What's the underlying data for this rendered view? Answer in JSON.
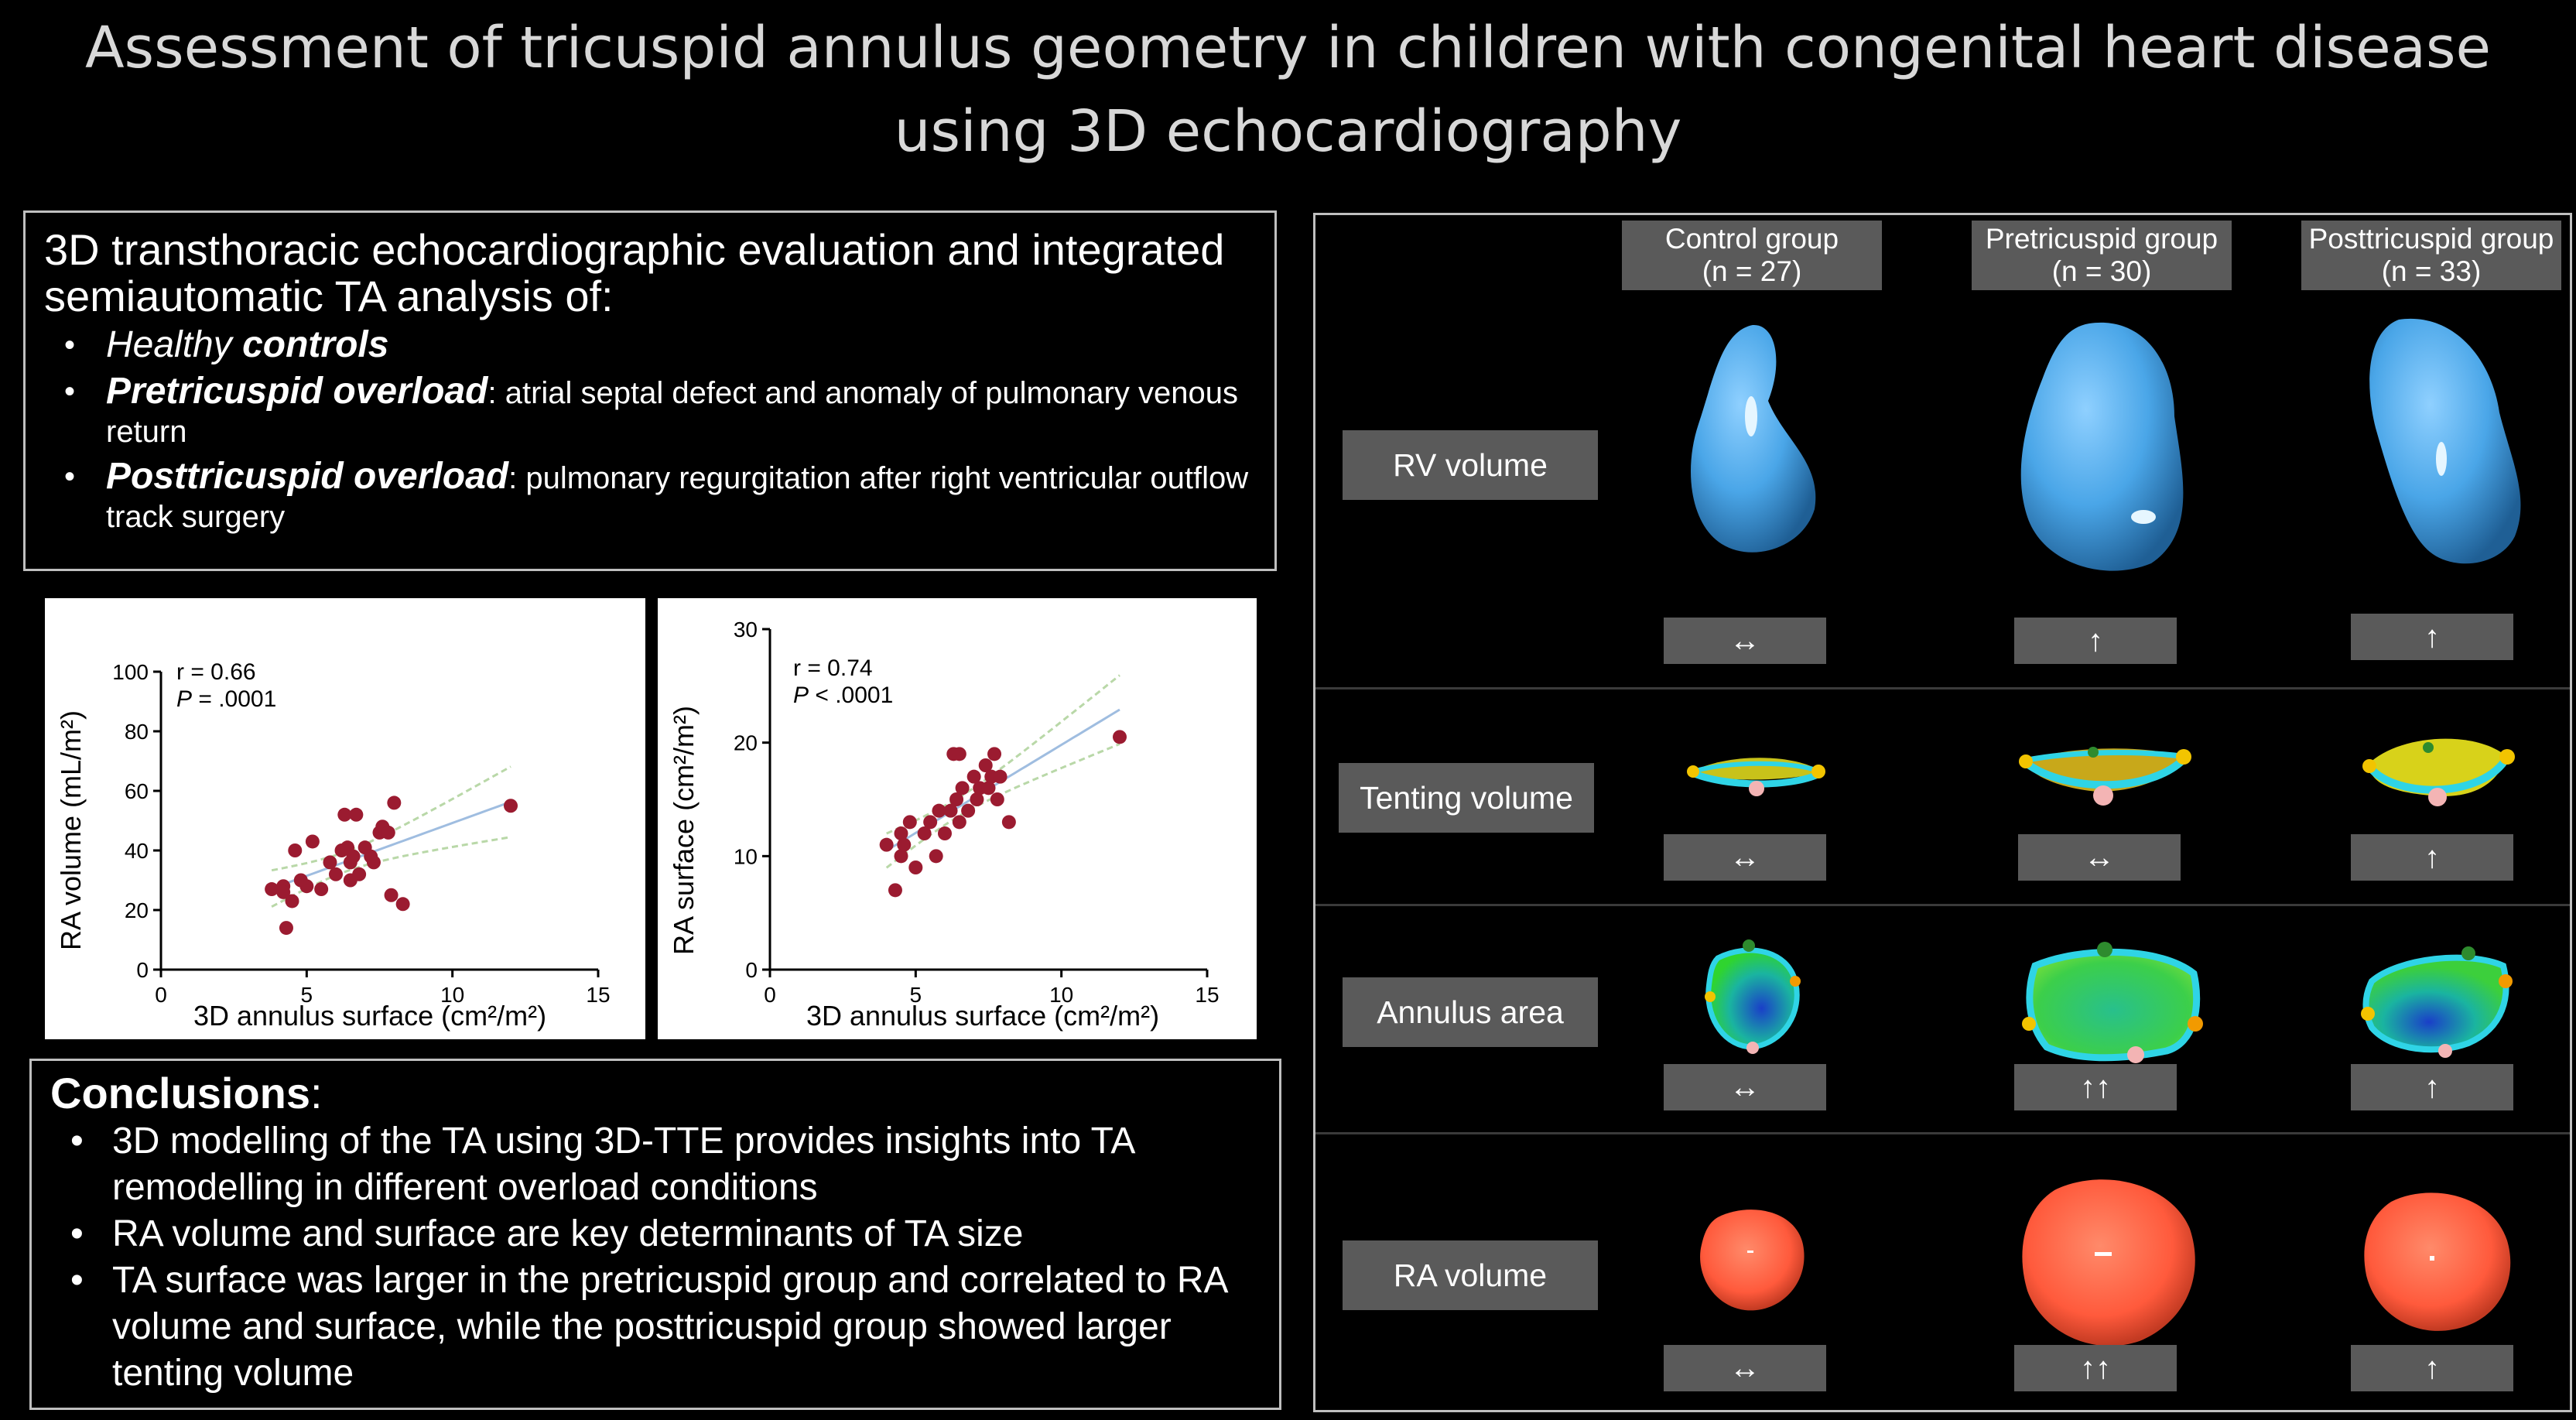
{
  "title": "Assessment of tricuspid annulus geometry in children with congenital heart disease using 3D echocardiography",
  "intro": {
    "lead": "3D  transthoracic echocardiographic evaluation and integrated semiautomatic TA analysis of:",
    "items": [
      {
        "em": "Healthy ",
        "emb": "controls",
        "text": ""
      },
      {
        "em": "",
        "emb": "Pretricuspid overload",
        "text": ": atrial septal defect and anomaly of pulmonary venous return"
      },
      {
        "em": "",
        "emb": "Posttricuspid overload",
        "text": ": pulmonary regurgitation after right ventricular outflow track surgery"
      }
    ]
  },
  "plots": [
    {
      "ylabel": "RA volume (mL/m²)",
      "xlabel": "3D annulus surface (cm²/m²)",
      "r": "r = 0.66",
      "p_label": "P",
      "p_value": " = .0001",
      "yticks": [
        "0",
        "20",
        "40",
        "60",
        "80",
        "100"
      ],
      "xticks": [
        "0",
        "5",
        "10",
        "15"
      ],
      "ylim": [
        0,
        100
      ]
    },
    {
      "ylabel": "RA surface (cm²/m²)",
      "xlabel": "3D annulus surface (cm²/m²)",
      "r": "r = 0.74",
      "p_label": "P",
      "p_value": " < .0001",
      "yticks": [
        "0",
        "10",
        "20",
        "30"
      ],
      "xticks": [
        "0",
        "5",
        "10",
        "15"
      ],
      "ylim": [
        0,
        30
      ]
    }
  ],
  "chart_data": [
    {
      "type": "scatter",
      "xlabel": "3D annulus surface (cm²/m²)",
      "ylabel": "RA volume (mL/m²)",
      "xlim": [
        0,
        15
      ],
      "ylim": [
        0,
        100
      ],
      "annotations": [
        "r = 0.66",
        "P = .0001"
      ],
      "x": [
        3.8,
        4.2,
        4.5,
        4.6,
        4.3,
        4.8,
        5.2,
        5.5,
        5.8,
        6.0,
        6.2,
        6.3,
        6.5,
        6.5,
        6.7,
        6.8,
        7.0,
        7.2,
        7.3,
        7.5,
        7.6,
        7.8,
        7.9,
        8.0,
        8.3,
        4.2,
        6.4,
        6.6,
        5.0,
        12.0
      ],
      "y": [
        27,
        28,
        23,
        40,
        14,
        30,
        43,
        27,
        36,
        32,
        40,
        52,
        36,
        30,
        52,
        32,
        41,
        38,
        36,
        46,
        48,
        46,
        25,
        56,
        22,
        26,
        41,
        38,
        28,
        55
      ]
    },
    {
      "type": "scatter",
      "xlabel": "3D annulus surface (cm²/m²)",
      "ylabel": "RA surface (cm²/m²)",
      "xlim": [
        0,
        15
      ],
      "ylim": [
        0,
        30
      ],
      "annotations": [
        "r = 0.74",
        "P < .0001"
      ],
      "x": [
        4.0,
        4.3,
        4.5,
        4.6,
        4.8,
        5.0,
        5.3,
        5.5,
        5.7,
        5.8,
        6.0,
        6.2,
        6.3,
        6.4,
        6.5,
        6.6,
        6.8,
        7.0,
        7.1,
        7.2,
        7.4,
        7.5,
        7.6,
        7.8,
        7.9,
        8.2,
        6.5,
        7.7,
        4.5,
        12.0
      ],
      "y": [
        11,
        7,
        10,
        11,
        13,
        9,
        12,
        13,
        10,
        14,
        12,
        14,
        19,
        15,
        19,
        16,
        14,
        17,
        15,
        16,
        18,
        16,
        17,
        15,
        17,
        13,
        13,
        19,
        12,
        20.5
      ]
    }
  ],
  "conclusions": {
    "head": "Conclusions",
    "head_suffix": ":",
    "items": [
      "3D modelling of the TA using 3D-TTE provides insights into TA remodelling in different overload conditions",
      "RA volume and surface are key determinants of TA size",
      "TA surface was larger in the pretricuspid group and correlated to RA volume and surface, while the posttricuspid group showed larger tenting volume"
    ]
  },
  "groups": [
    {
      "name": "Control group",
      "n": "(n = 27)"
    },
    {
      "name": "Pretricuspid group",
      "n": "(n = 30)"
    },
    {
      "name": "Posttricuspid group",
      "n": "(n = 33)"
    }
  ],
  "rows": [
    {
      "label": "RV volume",
      "arrows": [
        "↔",
        "↑",
        "↑"
      ]
    },
    {
      "label": "Tenting volume",
      "arrows": [
        "↔",
        "↔",
        "↑"
      ]
    },
    {
      "label": "Annulus area",
      "arrows": [
        "↔",
        "↑↑",
        "↑"
      ]
    },
    {
      "label": "RA volume",
      "arrows": [
        "↔",
        "↑↑",
        "↑"
      ]
    }
  ],
  "colors": {
    "background": "#000000",
    "label_bg": "#5a5a5a",
    "dot": "#9b1b30",
    "fit_line": "#9fbde0",
    "ci_line": "#b9d8a8",
    "rv_blue": "#4aa6e8",
    "ra_red": "#ff6a50"
  }
}
